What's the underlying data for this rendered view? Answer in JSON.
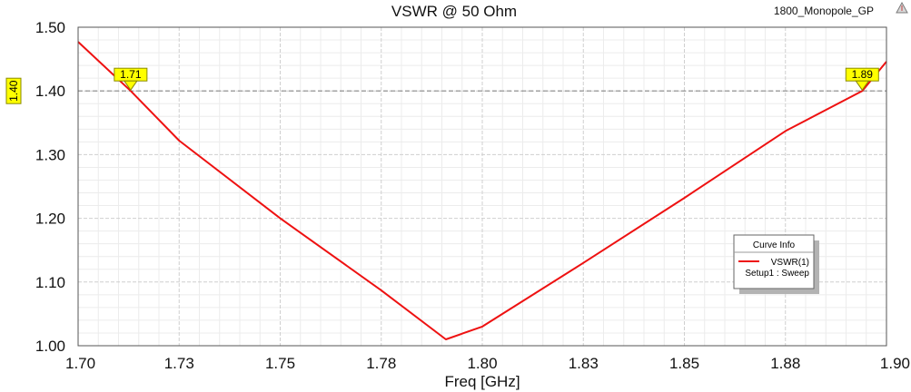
{
  "project_name": "1800_Monopole_GP",
  "chart_data": {
    "type": "line",
    "title": "VSWR @ 50 Ohm",
    "xlabel": "Freq [GHz]",
    "ylabel": "",
    "xlim": [
      1.7,
      1.9
    ],
    "ylim": [
      1.0,
      1.5
    ],
    "x_tick_values": [
      1.7,
      1.725,
      1.75,
      1.775,
      1.8,
      1.825,
      1.85,
      1.875,
      1.9
    ],
    "x_tick_labels": [
      "1.70",
      "1.73",
      "1.75",
      "1.78",
      "1.80",
      "1.83",
      "1.85",
      "1.88",
      "1.90"
    ],
    "y_tick_values": [
      1.0,
      1.1,
      1.2,
      1.3,
      1.4,
      1.5
    ],
    "y_tick_labels": [
      "1.00",
      "1.10",
      "1.20",
      "1.30",
      "1.40",
      "1.50"
    ],
    "grid": true,
    "series": [
      {
        "name": "VSWR(1)",
        "color": "#ee1111",
        "x": [
          1.7,
          1.713,
          1.725,
          1.75,
          1.775,
          1.791,
          1.8,
          1.825,
          1.85,
          1.875,
          1.894,
          1.9
        ],
        "y": [
          1.477,
          1.4,
          1.322,
          1.2,
          1.087,
          1.01,
          1.03,
          1.13,
          1.232,
          1.337,
          1.4,
          1.446
        ]
      }
    ],
    "reference_line": {
      "y": 1.4,
      "label": "1.40",
      "color": "#8a8a8a"
    },
    "markers": [
      {
        "label": "1.71",
        "x": 1.713,
        "y": 1.4
      },
      {
        "label": "1.89",
        "x": 1.894,
        "y": 1.4
      }
    ],
    "legend": {
      "title": "Curve Info",
      "entry": "VSWR(1)",
      "subtext": "Setup1 : Sweep",
      "position": "right"
    }
  }
}
